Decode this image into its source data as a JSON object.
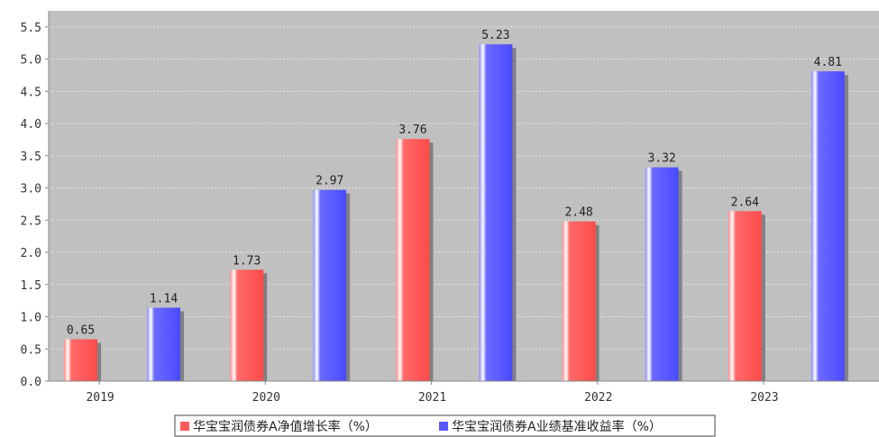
{
  "chart_data": {
    "type": "bar",
    "categories": [
      "2019",
      "2020",
      "2021",
      "2022",
      "2023"
    ],
    "series": [
      {
        "name": "华宝宝润债券A净值增长率（%）",
        "values": [
          0.65,
          1.73,
          3.76,
          2.48,
          2.64
        ],
        "color": "#ff5a5a"
      },
      {
        "name": "华宝宝润债券A业绩基准收益率（%）",
        "values": [
          1.14,
          2.97,
          5.23,
          3.32,
          4.81
        ],
        "color": "#5858ff"
      }
    ],
    "value_labels": [
      [
        "0.65",
        "1.73",
        "3.76",
        "2.48",
        "2.64"
      ],
      [
        "1.14",
        "2.97",
        "5.23",
        "3.32",
        "4.81"
      ]
    ],
    "y_ticks": [
      "0.0",
      "0.5",
      "1.0",
      "1.5",
      "2.0",
      "2.5",
      "3.0",
      "3.5",
      "4.0",
      "4.5",
      "5.0",
      "5.5"
    ],
    "ylim": [
      0,
      5.75
    ],
    "grid": true,
    "legend_position": "bottom-center",
    "plot_background": "#c0c0c0",
    "grid_color": "#e8e8e8"
  }
}
